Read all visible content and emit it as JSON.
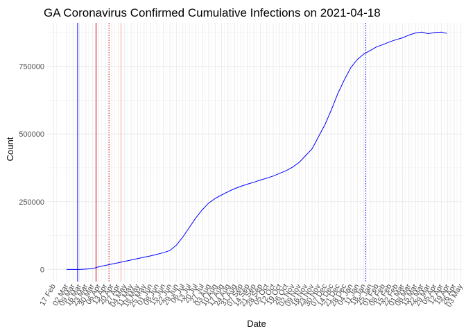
{
  "chart_data": {
    "type": "line",
    "title": "GA Coronavirus Confirmed Cumulative Infections on 2021-04-18",
    "xlabel": "Date",
    "ylabel": "Count",
    "xlim": [
      "2020-02-10",
      "2021-05-05"
    ],
    "ylim": [
      -45000,
      910000
    ],
    "yticks": [
      0,
      250000,
      500000,
      750000
    ],
    "ytick_labels": [
      "0",
      "250000",
      "500000",
      "750000"
    ],
    "xticks": [
      "2020-02-17",
      "2020-03-02",
      "2020-03-09",
      "2020-03-16",
      "2020-03-23",
      "2020-03-30",
      "2020-04-06",
      "2020-04-13",
      "2020-04-20",
      "2020-04-27",
      "2020-05-04",
      "2020-05-11",
      "2020-05-18",
      "2020-05-25",
      "2020-06-01",
      "2020-06-08",
      "2020-06-15",
      "2020-06-22",
      "2020-06-29",
      "2020-07-06",
      "2020-07-13",
      "2020-07-20",
      "2020-07-27",
      "2020-08-03",
      "2020-08-10",
      "2020-08-17",
      "2020-08-24",
      "2020-08-31",
      "2020-09-07",
      "2020-09-14",
      "2020-09-21",
      "2020-09-28",
      "2020-10-05",
      "2020-10-12",
      "2020-10-19",
      "2020-10-26",
      "2020-11-02",
      "2020-11-09",
      "2020-11-16",
      "2020-11-23",
      "2020-11-30",
      "2020-12-07",
      "2020-12-14",
      "2020-12-21",
      "2020-12-28",
      "2021-01-04",
      "2021-01-11",
      "2021-01-18",
      "2021-01-25",
      "2021-02-01",
      "2021-02-08",
      "2021-02-15",
      "2021-02-22",
      "2021-03-01",
      "2021-03-08",
      "2021-03-15",
      "2021-03-22",
      "2021-03-29",
      "2021-04-05",
      "2021-04-12",
      "2021-04-19",
      "2021-04-26",
      "2021-05-03"
    ],
    "xtick_labels": [
      "17 Feb",
      "02 Mar",
      "09 Mar",
      "16 Mar",
      "23 Mar",
      "30 Mar",
      "06 Apr",
      "13 Apr",
      "20 Apr",
      "27 Apr",
      "04 May",
      "11 May",
      "18 May",
      "25 May",
      "01 Jun",
      "08 Jun",
      "15 Jun",
      "22 Jun",
      "29 Jun",
      "06 Jul",
      "13 Jul",
      "20 Jul",
      "27 Jul",
      "03 Aug",
      "10 Aug",
      "17 Aug",
      "24 Aug",
      "31 Aug",
      "07 Sep",
      "14 Sep",
      "21 Sep",
      "28 Sep",
      "05 Oct",
      "12 Oct",
      "19 Oct",
      "26 Oct",
      "02 Nov",
      "09 Nov",
      "16 Nov",
      "23 Nov",
      "30 Nov",
      "07 Dec",
      "14 Dec",
      "21 Dec",
      "28 Dec",
      "04 Jan",
      "11 Jan",
      "18 Jan",
      "25 Jan",
      "01 Feb",
      "08 Feb",
      "15 Feb",
      "22 Feb",
      "01 Mar",
      "08 Mar",
      "15 Mar",
      "22 Mar",
      "29 Mar",
      "05 Apr",
      "12 Apr",
      "19 Apr",
      "26 Apr",
      "03 May"
    ],
    "grid": true,
    "colors": {
      "series": "#0000ff",
      "vline_blue": "#0000ff",
      "vline_red": "#cc0000",
      "vline_pink": "#ff9999",
      "grid": "#ebebeb"
    },
    "vlines": [
      {
        "x": "2020-03-14",
        "color": "#0000ff",
        "style": "solid"
      },
      {
        "x": "2020-04-03",
        "color": "#cc0000",
        "style": "solid"
      },
      {
        "x": "2020-04-17",
        "color": "#cc0000",
        "style": "dotted"
      },
      {
        "x": "2020-04-30",
        "color": "#ff9999",
        "style": "solid"
      },
      {
        "x": "2021-01-20",
        "color": "#0000ff",
        "style": "dotted"
      }
    ],
    "series": [
      {
        "x": [
          "2020-03-02",
          "2020-03-16",
          "2020-03-30",
          "2020-04-06",
          "2020-04-13",
          "2020-04-20",
          "2020-04-27",
          "2020-05-04",
          "2020-05-11",
          "2020-05-18",
          "2020-05-25",
          "2020-06-01",
          "2020-06-08",
          "2020-06-15",
          "2020-06-22",
          "2020-06-29",
          "2020-07-06",
          "2020-07-13",
          "2020-07-20",
          "2020-07-27",
          "2020-08-03",
          "2020-08-10",
          "2020-08-17",
          "2020-08-24",
          "2020-08-31",
          "2020-09-07",
          "2020-09-14",
          "2020-09-21",
          "2020-09-28",
          "2020-10-05",
          "2020-10-12",
          "2020-10-19",
          "2020-10-26",
          "2020-11-02",
          "2020-11-09",
          "2020-11-16",
          "2020-11-23",
          "2020-11-30",
          "2020-12-07",
          "2020-12-14",
          "2020-12-21",
          "2020-12-28",
          "2021-01-04",
          "2021-01-11",
          "2021-01-18",
          "2021-01-25",
          "2021-02-01",
          "2021-02-08",
          "2021-02-15",
          "2021-02-22",
          "2021-03-01",
          "2021-03-08",
          "2021-03-15",
          "2021-03-22",
          "2021-03-29",
          "2021-04-05",
          "2021-04-12",
          "2021-04-18"
        ],
        "values": [
          0,
          100,
          3000,
          10000,
          15000,
          20000,
          25000,
          30000,
          35000,
          40000,
          45000,
          50000,
          56000,
          62000,
          70000,
          90000,
          120000,
          155000,
          190000,
          220000,
          245000,
          262000,
          275000,
          287000,
          298000,
          307000,
          315000,
          322000,
          330000,
          337000,
          345000,
          355000,
          365000,
          378000,
          395000,
          420000,
          445000,
          490000,
          535000,
          590000,
          650000,
          700000,
          745000,
          775000,
          795000,
          808000,
          822000,
          830000,
          840000,
          848000,
          855000,
          865000,
          873000,
          876000,
          870000,
          875000,
          876000,
          871000
        ]
      }
    ]
  }
}
